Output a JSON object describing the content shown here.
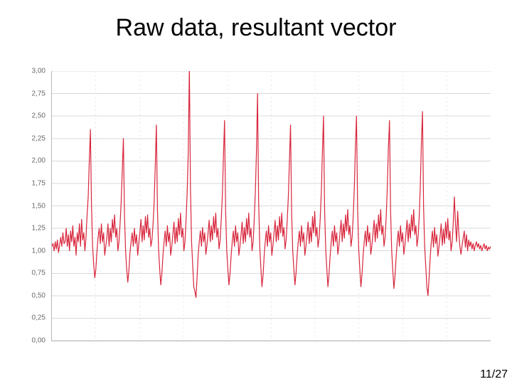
{
  "title": "Raw data, resultant vector",
  "page_label": "11/27",
  "chart": {
    "type": "line",
    "background_color": "#ffffff",
    "axis_color": "#b8b8b8",
    "grid_color": "#d8d8d8",
    "xgrid_color": "#e8e8e8",
    "line_color": "#d8263c",
    "line_width": 1.2,
    "tick_label_color": "#6a6a6a",
    "tick_fontsize": 10,
    "ylim": [
      0.0,
      3.0
    ],
    "ytick_step": 0.25,
    "ytick_labels": [
      "0,00",
      "0,25",
      "0,50",
      "0,75",
      "1,00",
      "1,25",
      "1,50",
      "1,75",
      "2,00",
      "2,25",
      "2,50",
      "2,75",
      "3,00"
    ],
    "xlim": [
      0,
      400
    ],
    "xgrid_lines": [
      40,
      80,
      120,
      160,
      200,
      240,
      280,
      320,
      360
    ],
    "series": [
      1.05,
      1.08,
      1.0,
      1.1,
      1.02,
      1.12,
      0.98,
      1.06,
      1.15,
      1.05,
      1.2,
      1.08,
      1.1,
      1.25,
      1.05,
      1.18,
      1.0,
      1.22,
      1.1,
      1.28,
      1.05,
      1.15,
      0.95,
      1.2,
      1.1,
      1.3,
      1.05,
      1.35,
      1.12,
      1.2,
      1.0,
      1.15,
      1.4,
      1.6,
      2.0,
      2.35,
      1.5,
      1.05,
      0.85,
      0.7,
      0.8,
      1.0,
      1.15,
      1.25,
      1.08,
      1.3,
      1.1,
      1.2,
      0.95,
      1.05,
      1.15,
      1.3,
      1.05,
      1.25,
      1.1,
      1.35,
      1.2,
      1.4,
      1.15,
      1.25,
      1.0,
      1.1,
      1.3,
      1.55,
      1.9,
      2.25,
      1.4,
      1.0,
      0.8,
      0.65,
      0.78,
      0.98,
      1.1,
      1.2,
      1.05,
      1.25,
      1.08,
      1.18,
      0.95,
      1.08,
      1.2,
      1.35,
      1.1,
      1.28,
      1.12,
      1.38,
      1.2,
      1.4,
      1.15,
      1.25,
      1.05,
      1.12,
      1.3,
      1.55,
      1.95,
      2.4,
      1.45,
      1.02,
      0.8,
      0.62,
      0.75,
      0.95,
      1.1,
      1.22,
      1.05,
      1.28,
      1.1,
      1.2,
      0.95,
      1.05,
      1.18,
      1.32,
      1.08,
      1.26,
      1.1,
      1.36,
      1.18,
      1.42,
      1.15,
      1.25,
      1.0,
      1.1,
      1.35,
      1.65,
      2.1,
      3.05,
      1.7,
      1.1,
      0.85,
      0.6,
      0.55,
      0.48,
      0.7,
      0.95,
      1.1,
      1.22,
      1.05,
      1.26,
      1.1,
      1.2,
      0.96,
      1.06,
      1.2,
      1.34,
      1.1,
      1.28,
      1.12,
      1.38,
      1.2,
      1.42,
      1.15,
      1.25,
      1.02,
      1.12,
      1.35,
      1.62,
      2.05,
      2.45,
      1.42,
      1.0,
      0.8,
      0.62,
      0.75,
      0.95,
      1.1,
      1.22,
      1.05,
      1.28,
      1.1,
      1.2,
      0.95,
      1.05,
      1.18,
      1.32,
      1.08,
      1.26,
      1.1,
      1.36,
      1.18,
      1.42,
      1.15,
      1.25,
      1.0,
      1.1,
      1.35,
      1.65,
      2.1,
      2.75,
      1.55,
      1.05,
      0.82,
      0.6,
      0.72,
      0.94,
      1.1,
      1.22,
      1.05,
      1.28,
      1.1,
      1.2,
      0.95,
      1.06,
      1.2,
      1.34,
      1.1,
      1.28,
      1.12,
      1.38,
      1.2,
      1.42,
      1.16,
      1.26,
      1.02,
      1.12,
      1.34,
      1.6,
      2.0,
      2.4,
      1.42,
      1.0,
      0.8,
      0.62,
      0.75,
      0.95,
      1.1,
      1.22,
      1.05,
      1.28,
      1.1,
      1.2,
      0.95,
      1.05,
      1.18,
      1.32,
      1.08,
      1.26,
      1.1,
      1.38,
      1.2,
      1.44,
      1.16,
      1.26,
      1.04,
      1.14,
      1.36,
      1.65,
      2.1,
      2.5,
      1.45,
      1.02,
      0.8,
      0.6,
      0.74,
      0.94,
      1.1,
      1.22,
      1.05,
      1.28,
      1.1,
      1.2,
      0.96,
      1.06,
      1.2,
      1.34,
      1.1,
      1.3,
      1.14,
      1.4,
      1.22,
      1.46,
      1.18,
      1.28,
      1.05,
      1.15,
      1.38,
      1.7,
      2.15,
      2.5,
      1.46,
      1.02,
      0.8,
      0.6,
      0.74,
      0.94,
      1.1,
      1.22,
      1.05,
      1.28,
      1.1,
      1.2,
      0.96,
      1.06,
      1.2,
      1.34,
      1.1,
      1.3,
      1.14,
      1.4,
      1.22,
      1.46,
      1.18,
      1.28,
      1.05,
      1.15,
      1.38,
      1.7,
      2.15,
      2.45,
      1.44,
      1.0,
      0.78,
      0.58,
      0.72,
      0.92,
      1.1,
      1.22,
      1.05,
      1.28,
      1.1,
      1.2,
      0.96,
      1.06,
      1.2,
      1.34,
      1.1,
      1.3,
      1.14,
      1.4,
      1.22,
      1.46,
      1.18,
      1.28,
      1.05,
      1.15,
      1.38,
      1.72,
      2.2,
      2.55,
      1.48,
      1.04,
      0.82,
      0.6,
      0.5,
      0.7,
      0.92,
      1.1,
      1.22,
      1.04,
      1.26,
      1.08,
      1.18,
      0.94,
      1.04,
      1.16,
      1.3,
      1.06,
      1.24,
      1.08,
      1.32,
      1.14,
      1.36,
      1.12,
      1.22,
      1.0,
      1.1,
      1.32,
      1.6,
      1.3,
      1.1,
      1.44,
      1.2,
      1.05,
      0.96,
      1.06,
      1.14,
      1.22,
      1.04,
      1.18,
      1.0,
      1.12,
      1.05,
      1.1,
      1.02,
      1.08,
      1.0,
      1.06,
      1.1,
      1.04,
      1.08,
      1.02,
      1.06,
      1.0,
      1.04,
      1.08,
      1.02,
      1.06,
      1.0,
      1.04,
      1.02,
      1.05
    ]
  }
}
